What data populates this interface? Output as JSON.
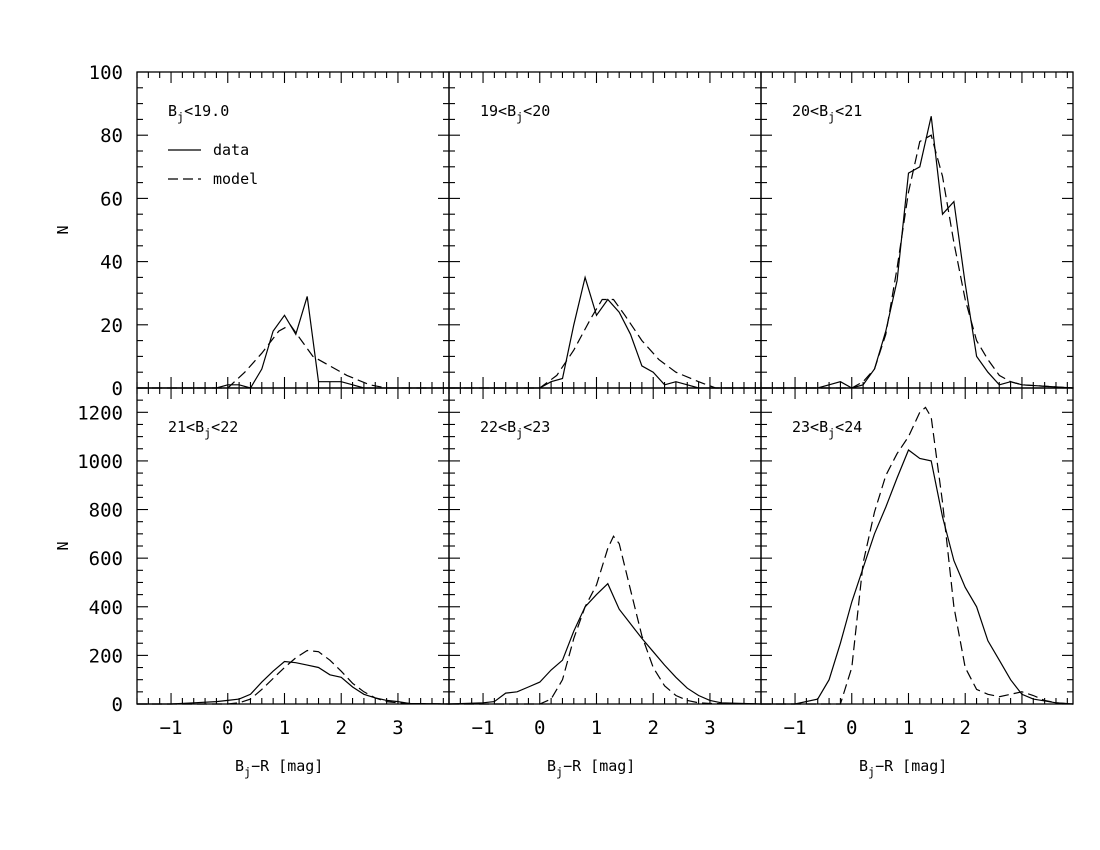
{
  "chart_data": {
    "type": "line",
    "xlabel": "B_j−R  [mag]",
    "ylabel": "N",
    "xlim": [
      -1.6,
      3.9
    ],
    "x_ticks": [
      -1,
      0,
      1,
      2,
      3
    ],
    "legend": {
      "placement": "top-left of first panel",
      "entries": [
        {
          "label": "data",
          "style": "solid"
        },
        {
          "label": "model",
          "style": "dashed"
        }
      ]
    },
    "rows": [
      {
        "ylim": [
          0,
          100
        ],
        "y_ticks": [
          0,
          20,
          40,
          60,
          80,
          100
        ]
      },
      {
        "ylim": [
          0,
          1300
        ],
        "y_ticks": [
          0,
          200,
          400,
          600,
          800,
          1000,
          1200
        ]
      }
    ],
    "panels": [
      {
        "label": {
          "pre": "B",
          "sub": "j",
          "post": "<19.0"
        },
        "row": 0,
        "col": 0,
        "series": [
          {
            "name": "data",
            "style": "solid",
            "x": [
              -1.6,
              -0.2,
              0.0,
              0.2,
              0.4,
              0.6,
              0.8,
              1.0,
              1.2,
              1.4,
              1.6,
              1.7,
              1.8,
              2.0,
              2.2,
              2.4,
              2.6,
              3.9
            ],
            "y": [
              0,
              0,
              1,
              1,
              0,
              6,
              18,
              23,
              17,
              29,
              2,
              2,
              2,
              2,
              1,
              0,
              0,
              0
            ]
          },
          {
            "name": "model",
            "style": "dashed",
            "x": [
              -1.6,
              0.0,
              0.3,
              0.6,
              0.9,
              1.1,
              1.3,
              1.5,
              1.8,
              2.1,
              2.5,
              2.8,
              3.9
            ],
            "y": [
              0,
              0,
              5,
              11,
              18,
              20,
              15,
              10,
              7,
              4,
              1,
              0,
              0
            ]
          }
        ]
      },
      {
        "label": {
          "pre": "19<B",
          "sub": "j",
          "post": "<20"
        },
        "row": 0,
        "col": 1,
        "series": [
          {
            "name": "data",
            "style": "solid",
            "x": [
              -1.6,
              -0.2,
              0.0,
              0.2,
              0.4,
              0.6,
              0.8,
              1.0,
              1.2,
              1.4,
              1.6,
              1.8,
              2.0,
              2.2,
              2.4,
              2.6,
              2.8,
              3.9
            ],
            "y": [
              0,
              0,
              0,
              2,
              3,
              20,
              35,
              23,
              28,
              24,
              17,
              7,
              5,
              1,
              2,
              1,
              0,
              0
            ]
          },
          {
            "name": "model",
            "style": "dashed",
            "x": [
              -1.6,
              0.0,
              0.3,
              0.6,
              0.9,
              1.1,
              1.3,
              1.5,
              1.8,
              2.1,
              2.4,
              2.8,
              3.1,
              3.9
            ],
            "y": [
              0,
              0,
              4,
              12,
              22,
              28,
              28,
              23,
              15,
              9,
              5,
              2,
              0,
              0
            ]
          }
        ]
      },
      {
        "label": {
          "pre": "20<B",
          "sub": "j",
          "post": "<21"
        },
        "row": 0,
        "col": 2,
        "series": [
          {
            "name": "data",
            "style": "solid",
            "x": [
              -1.6,
              -0.6,
              -0.4,
              -0.2,
              0.0,
              0.2,
              0.4,
              0.6,
              0.8,
              1.0,
              1.2,
              1.4,
              1.6,
              1.8,
              2.0,
              2.2,
              2.4,
              2.6,
              2.8,
              3.0,
              3.9
            ],
            "y": [
              0,
              0,
              1,
              2,
              0,
              1,
              6,
              18,
              34,
              68,
              70,
              86,
              55,
              59,
              33,
              10,
              5,
              1,
              2,
              1,
              0
            ]
          },
          {
            "name": "model",
            "style": "dashed",
            "x": [
              -1.6,
              0.0,
              0.2,
              0.4,
              0.6,
              0.8,
              1.0,
              1.2,
              1.4,
              1.6,
              1.8,
              2.0,
              2.2,
              2.4,
              2.6,
              2.8,
              3.0,
              3.9
            ],
            "y": [
              0,
              0,
              2,
              6,
              17,
              38,
              62,
              78,
              80,
              67,
              46,
              28,
              15,
              9,
              4,
              2,
              1,
              0
            ]
          }
        ]
      },
      {
        "label": {
          "pre": "21<B",
          "sub": "j",
          "post": "<22"
        },
        "row": 1,
        "col": 0,
        "series": [
          {
            "name": "data",
            "style": "solid",
            "x": [
              -1.6,
              -1.0,
              -0.6,
              -0.2,
              0.0,
              0.2,
              0.4,
              0.6,
              0.8,
              1.0,
              1.2,
              1.4,
              1.6,
              1.8,
              2.0,
              2.2,
              2.4,
              2.6,
              2.8,
              3.0,
              3.2,
              3.9
            ],
            "y": [
              0,
              0,
              5,
              10,
              15,
              20,
              40,
              90,
              135,
              175,
              170,
              160,
              150,
              120,
              110,
              70,
              40,
              25,
              15,
              10,
              2,
              0
            ]
          },
          {
            "name": "model",
            "style": "dashed",
            "x": [
              -1.6,
              0.0,
              0.2,
              0.4,
              0.6,
              0.8,
              1.0,
              1.2,
              1.4,
              1.6,
              1.8,
              2.0,
              2.2,
              2.4,
              2.6,
              2.8,
              3.0,
              3.2,
              3.9
            ],
            "y": [
              0,
              0,
              5,
              20,
              60,
              105,
              150,
              190,
              220,
              215,
              180,
              135,
              85,
              50,
              25,
              10,
              5,
              2,
              0
            ]
          }
        ]
      },
      {
        "label": {
          "pre": "22<B",
          "sub": "j",
          "post": "<23"
        },
        "row": 1,
        "col": 1,
        "series": [
          {
            "name": "data",
            "style": "solid",
            "x": [
              -1.6,
              -1.0,
              -0.8,
              -0.6,
              -0.4,
              -0.2,
              0.0,
              0.2,
              0.4,
              0.6,
              0.8,
              1.0,
              1.2,
              1.4,
              1.6,
              1.8,
              2.0,
              2.2,
              2.4,
              2.6,
              2.8,
              3.0,
              3.2,
              3.9
            ],
            "y": [
              0,
              5,
              10,
              45,
              50,
              70,
              90,
              140,
              180,
              300,
              400,
              450,
              495,
              390,
              330,
              270,
              215,
              160,
              110,
              65,
              35,
              15,
              5,
              0
            ]
          },
          {
            "name": "model",
            "style": "dashed",
            "x": [
              -1.6,
              0.0,
              0.2,
              0.4,
              0.6,
              0.8,
              1.0,
              1.2,
              1.3,
              1.4,
              1.6,
              1.8,
              2.0,
              2.2,
              2.4,
              2.6,
              2.8,
              3.0,
              3.9
            ],
            "y": [
              0,
              0,
              20,
              100,
              270,
              400,
              490,
              640,
              690,
              660,
              470,
              280,
              150,
              75,
              35,
              15,
              5,
              2,
              0
            ]
          }
        ]
      },
      {
        "label": {
          "pre": "23<B",
          "sub": "j",
          "post": "<24"
        },
        "row": 1,
        "col": 2,
        "series": [
          {
            "name": "data",
            "style": "solid",
            "x": [
              -1.6,
              -1.0,
              -0.6,
              -0.4,
              -0.2,
              0.0,
              0.2,
              0.4,
              0.6,
              0.8,
              1.0,
              1.2,
              1.4,
              1.6,
              1.8,
              2.0,
              2.2,
              2.4,
              2.6,
              2.8,
              3.0,
              3.2,
              3.6,
              3.9
            ],
            "y": [
              0,
              0,
              20,
              100,
              250,
              420,
              560,
              700,
              810,
              930,
              1045,
              1010,
              1000,
              770,
              590,
              480,
              400,
              260,
              180,
              100,
              40,
              20,
              5,
              0
            ]
          },
          {
            "name": "model",
            "style": "dashed",
            "x": [
              -1.6,
              -0.2,
              0.0,
              0.2,
              0.4,
              0.6,
              0.8,
              1.0,
              1.2,
              1.3,
              1.4,
              1.6,
              1.8,
              2.0,
              2.2,
              2.4,
              2.6,
              2.8,
              3.0,
              3.2,
              3.4,
              3.6,
              3.9
            ],
            "y": [
              0,
              0,
              150,
              580,
              790,
              940,
              1030,
              1100,
              1200,
              1220,
              1180,
              830,
              400,
              150,
              60,
              40,
              30,
              40,
              50,
              35,
              15,
              5,
              0
            ]
          }
        ]
      }
    ]
  }
}
